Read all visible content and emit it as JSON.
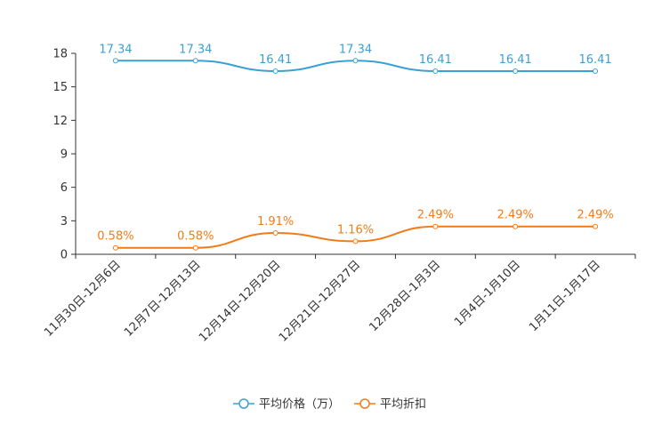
{
  "chart_data": {
    "type": "line",
    "categories": [
      "11月30日-12月6日",
      "12月7日-12月13日",
      "12月14日-12月20日",
      "12月21日-12月27日",
      "12月28日-1月3日",
      "1月4日-1月10日",
      "1月11日-1月17日"
    ],
    "series": [
      {
        "name": "平均价格（万）",
        "color": "#3ba1d4",
        "values": [
          17.34,
          17.34,
          16.41,
          17.34,
          16.41,
          16.41,
          16.41
        ],
        "labels": [
          "17.34",
          "17.34",
          "16.41",
          "17.34",
          "16.41",
          "16.41",
          "16.41"
        ]
      },
      {
        "name": "平均折扣",
        "color": "#f07c1a",
        "values": [
          0.58,
          0.58,
          1.91,
          1.16,
          2.49,
          2.49,
          2.49
        ],
        "labels": [
          "0.58%",
          "0.58%",
          "1.91%",
          "1.16%",
          "2.49%",
          "2.49%",
          "2.49%"
        ]
      }
    ],
    "yticks": [
      0,
      3,
      6,
      9,
      12,
      15,
      18
    ],
    "ylim": [
      0,
      18
    ],
    "legend": "bottom-center"
  }
}
